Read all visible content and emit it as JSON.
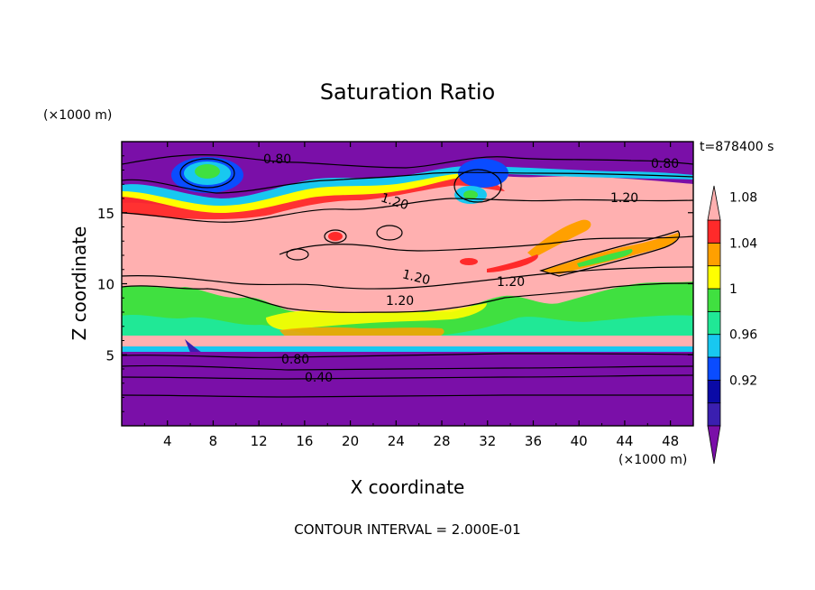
{
  "chart_data": {
    "type": "heatmap",
    "title": "Saturation Ratio",
    "xlabel": "X coordinate",
    "ylabel": "Z coordinate",
    "x_unit": "(×1000 m)",
    "y_unit": "(×1000 m)",
    "time_label": "t=878400 s",
    "contour_interval_text": "CONTOUR INTERVAL = 2.000E-01",
    "xlim": [
      0,
      50
    ],
    "ylim": [
      0,
      20
    ],
    "x_ticks": [
      "4",
      "8",
      "12",
      "16",
      "20",
      "24",
      "28",
      "32",
      "36",
      "40",
      "44",
      "48"
    ],
    "y_ticks": [
      "5",
      "10",
      "15"
    ],
    "colorbar": {
      "ticks": [
        "1.08",
        "1.04",
        "1",
        "0.96",
        "0.92"
      ],
      "levels": [
        0.9,
        0.92,
        0.94,
        0.96,
        0.98,
        1.0,
        1.02,
        1.04,
        1.06,
        1.08,
        1.1
      ],
      "colors": [
        "#7a0fa8",
        "#3a1fb0",
        "#0a0aa6",
        "#0a4cff",
        "#18c8f0",
        "#20e896",
        "#40e040",
        "#ffff00",
        "#ffa000",
        "#ff2a2a",
        "#ffb0b0"
      ]
    },
    "contour_labels": [
      "0.80",
      "0.80",
      "1.20",
      "1.20",
      "1.20",
      "1.20",
      "1.20",
      "0.80",
      "0.40"
    ]
  }
}
